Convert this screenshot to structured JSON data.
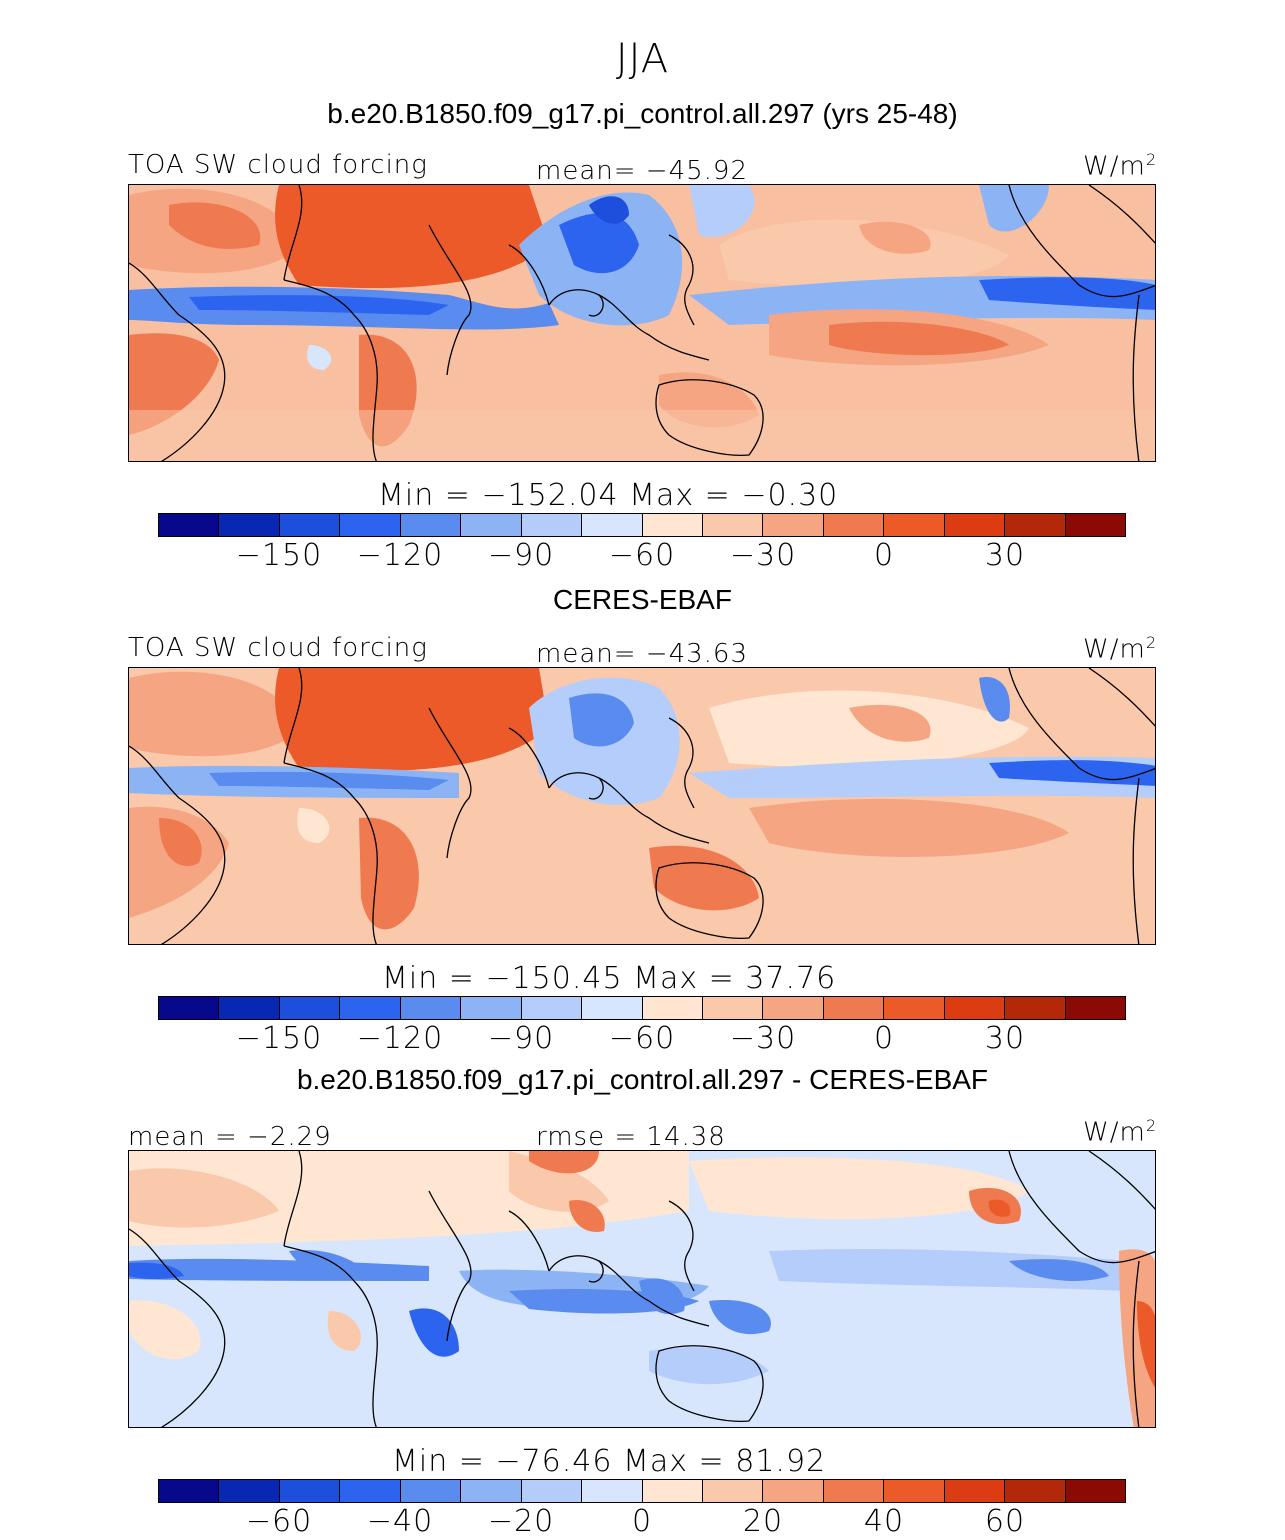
{
  "figure": {
    "season": "JJA",
    "model_title": "b.e20.B1850.f09_g17.pi_control.all.297 (yrs 25-48)",
    "obs_title": "CERES-EBAF",
    "diff_title": "b.e20.B1850.f09_g17.pi_control.all.297 - CERES-EBAF"
  },
  "panels": [
    {
      "variable": "TOA SW cloud forcing",
      "stat": "mean=  −45.92",
      "units": "W/m",
      "units_sup": "2",
      "minmax": "Min  =  −152.04  Max  =    −0.30"
    },
    {
      "variable": "TOA SW cloud forcing",
      "stat": "mean=  −43.63",
      "units": "W/m",
      "units_sup": "2",
      "minmax": "Min  =  −150.45  Max  =    37.76"
    },
    {
      "stat_left": "mean  =   −2.29",
      "stat": "rmse  =   14.38",
      "units": "W/m",
      "units_sup": "2",
      "minmax": "Min  =  −76.46  Max  =   81.92"
    }
  ],
  "colorbars": {
    "colors": [
      "#08088c",
      "#0828b4",
      "#1e4fdc",
      "#2c64f0",
      "#5a8cf0",
      "#8cb4f5",
      "#b4cdfa",
      "#d7e6fc",
      "#ffe6d2",
      "#fac8aa",
      "#f5a582",
      "#f07a50",
      "#eb5a28",
      "#dc3c12",
      "#b4280a",
      "#8c0a05"
    ],
    "absolute_ticks": [
      "−150",
      "−120",
      "−90",
      "−60",
      "−30",
      "0",
      "30"
    ],
    "difference_ticks": [
      "−60",
      "−40",
      "−20",
      "0",
      "20",
      "40",
      "60"
    ]
  }
}
